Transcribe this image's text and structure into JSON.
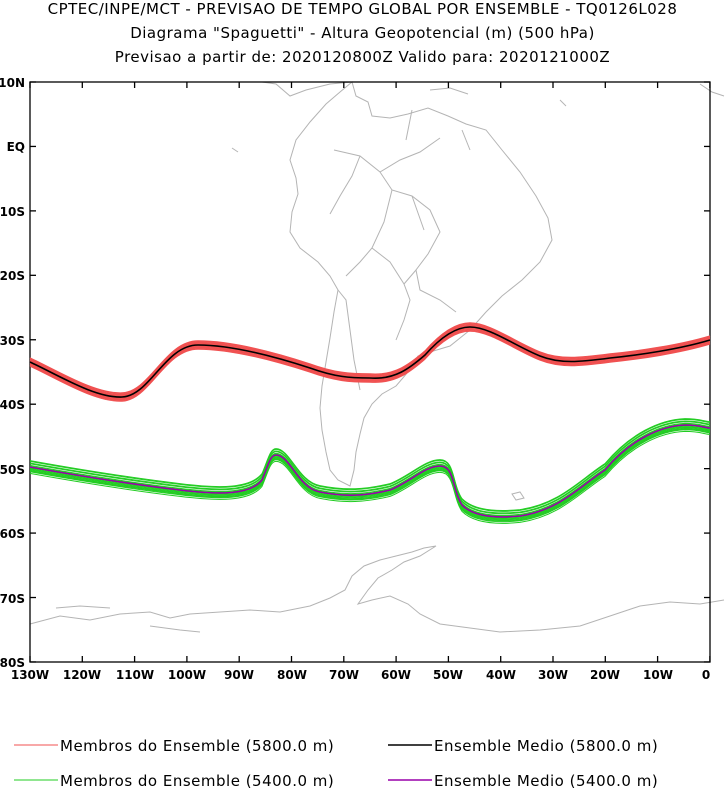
{
  "title": {
    "line1": "CPTEC/INPE/MCT - PREVISAO DE TEMPO GLOBAL POR ENSEMBLE - TQ0126L028",
    "line2": "Diagrama \"Spaguetti\" - Altura Geopotencial (m) (500 hPa)",
    "line3": "Previsao a partir de: 2020120800Z  Valido para: 2020121000Z"
  },
  "axes": {
    "lat_labels": [
      "10N",
      "EQ",
      "10S",
      "20S",
      "30S",
      "40S",
      "50S",
      "60S",
      "70S",
      "80S"
    ],
    "lon_labels": [
      "130W",
      "120W",
      "110W",
      "100W",
      "90W",
      "80W",
      "70W",
      "60W",
      "50W",
      "40W",
      "30W",
      "20W",
      "10W",
      "0"
    ]
  },
  "legend": {
    "items": [
      {
        "label": "Membros do Ensemble (5800.0 m)",
        "color": "#f05050"
      },
      {
        "label": "Ensemble Medio (5800.0 m)",
        "color": "#000000"
      },
      {
        "label": "Membros do Ensemble (5400.0 m)",
        "color": "#22cc22"
      },
      {
        "label": "Ensemble Medio (5400.0 m)",
        "color": "#9900aa"
      }
    ]
  },
  "colors": {
    "coast": "#b0b0b0",
    "frame": "#000000"
  }
}
